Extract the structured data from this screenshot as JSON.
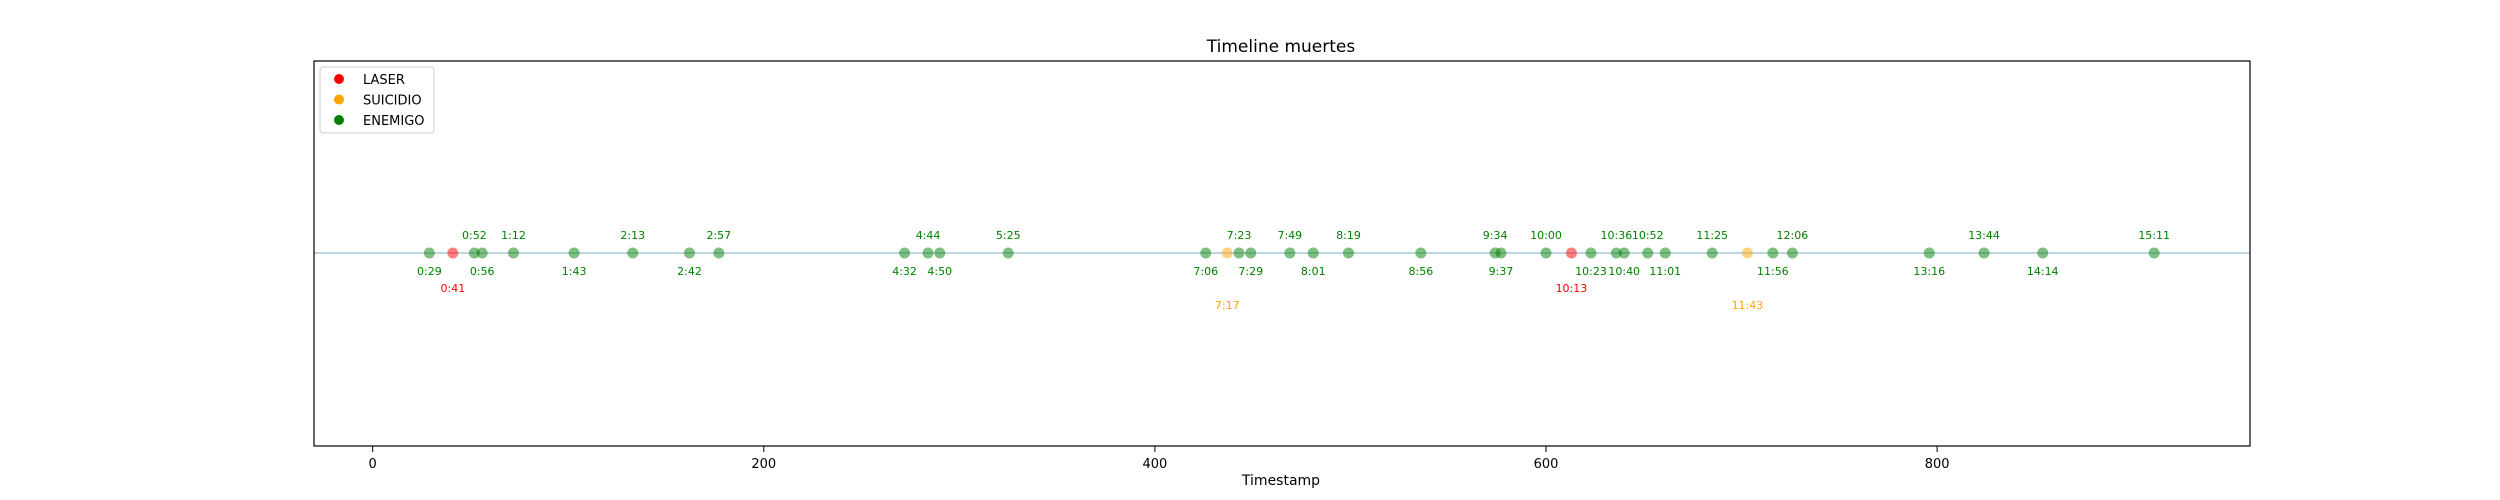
{
  "chart_data": {
    "type": "scatter",
    "title": "Timeline muertes",
    "xlabel": "Timestamp",
    "ylabel": "",
    "xlim": [
      -30,
      960
    ],
    "ylim": [
      -1,
      1
    ],
    "xticks": [
      0,
      200,
      400,
      600,
      800
    ],
    "grid": false,
    "legend_placement": "top-left",
    "series": [
      {
        "name": "LASER",
        "color": "#ff0000"
      },
      {
        "name": "SUICIDIO",
        "color": "#ffa500"
      },
      {
        "name": "ENEMIGO",
        "color": "#008000"
      }
    ],
    "points": [
      {
        "x": 29,
        "label": "0:29",
        "type": "ENEMIGO",
        "pos": "below"
      },
      {
        "x": 41,
        "label": "0:41",
        "type": "LASER",
        "pos": "below2"
      },
      {
        "x": 52,
        "label": "0:52",
        "type": "ENEMIGO",
        "pos": "above"
      },
      {
        "x": 56,
        "label": "0:56",
        "type": "ENEMIGO",
        "pos": "below"
      },
      {
        "x": 72,
        "label": "1:12",
        "type": "ENEMIGO",
        "pos": "above"
      },
      {
        "x": 103,
        "label": "1:43",
        "type": "ENEMIGO",
        "pos": "below"
      },
      {
        "x": 133,
        "label": "2:13",
        "type": "ENEMIGO",
        "pos": "above"
      },
      {
        "x": 162,
        "label": "2:42",
        "type": "ENEMIGO",
        "pos": "below"
      },
      {
        "x": 177,
        "label": "2:57",
        "type": "ENEMIGO",
        "pos": "above"
      },
      {
        "x": 272,
        "label": "4:32",
        "type": "ENEMIGO",
        "pos": "below"
      },
      {
        "x": 284,
        "label": "4:44",
        "type": "ENEMIGO",
        "pos": "above"
      },
      {
        "x": 290,
        "label": "4:50",
        "type": "ENEMIGO",
        "pos": "below"
      },
      {
        "x": 325,
        "label": "5:25",
        "type": "ENEMIGO",
        "pos": "above"
      },
      {
        "x": 426,
        "label": "7:06",
        "type": "ENEMIGO",
        "pos": "below"
      },
      {
        "x": 437,
        "label": "7:17",
        "type": "SUICIDIO",
        "pos": "below3"
      },
      {
        "x": 443,
        "label": "7:23",
        "type": "ENEMIGO",
        "pos": "above"
      },
      {
        "x": 449,
        "label": "7:29",
        "type": "ENEMIGO",
        "pos": "below"
      },
      {
        "x": 469,
        "label": "7:49",
        "type": "ENEMIGO",
        "pos": "above"
      },
      {
        "x": 481,
        "label": "8:01",
        "type": "ENEMIGO",
        "pos": "below"
      },
      {
        "x": 499,
        "label": "8:19",
        "type": "ENEMIGO",
        "pos": "above"
      },
      {
        "x": 536,
        "label": "8:56",
        "type": "ENEMIGO",
        "pos": "below"
      },
      {
        "x": 574,
        "label": "9:34",
        "type": "ENEMIGO",
        "pos": "above"
      },
      {
        "x": 577,
        "label": "9:37",
        "type": "ENEMIGO",
        "pos": "below"
      },
      {
        "x": 600,
        "label": "10:00",
        "type": "ENEMIGO",
        "pos": "above"
      },
      {
        "x": 613,
        "label": "10:13",
        "type": "LASER",
        "pos": "below2"
      },
      {
        "x": 623,
        "label": "10:23",
        "type": "ENEMIGO",
        "pos": "below"
      },
      {
        "x": 636,
        "label": "10:36",
        "type": "ENEMIGO",
        "pos": "above"
      },
      {
        "x": 640,
        "label": "10:40",
        "type": "ENEMIGO",
        "pos": "below"
      },
      {
        "x": 652,
        "label": "10:52",
        "type": "ENEMIGO",
        "pos": "above"
      },
      {
        "x": 661,
        "label": "11:01",
        "type": "ENEMIGO",
        "pos": "below"
      },
      {
        "x": 685,
        "label": "11:25",
        "type": "ENEMIGO",
        "pos": "above"
      },
      {
        "x": 703,
        "label": "11:43",
        "type": "SUICIDIO",
        "pos": "below3"
      },
      {
        "x": 716,
        "label": "11:56",
        "type": "ENEMIGO",
        "pos": "below"
      },
      {
        "x": 726,
        "label": "12:06",
        "type": "ENEMIGO",
        "pos": "above"
      },
      {
        "x": 796,
        "label": "13:16",
        "type": "ENEMIGO",
        "pos": "below"
      },
      {
        "x": 824,
        "label": "13:44",
        "type": "ENEMIGO",
        "pos": "above"
      },
      {
        "x": 854,
        "label": "14:14",
        "type": "ENEMIGO",
        "pos": "below"
      },
      {
        "x": 911,
        "label": "15:11",
        "type": "ENEMIGO",
        "pos": "above"
      }
    ]
  }
}
